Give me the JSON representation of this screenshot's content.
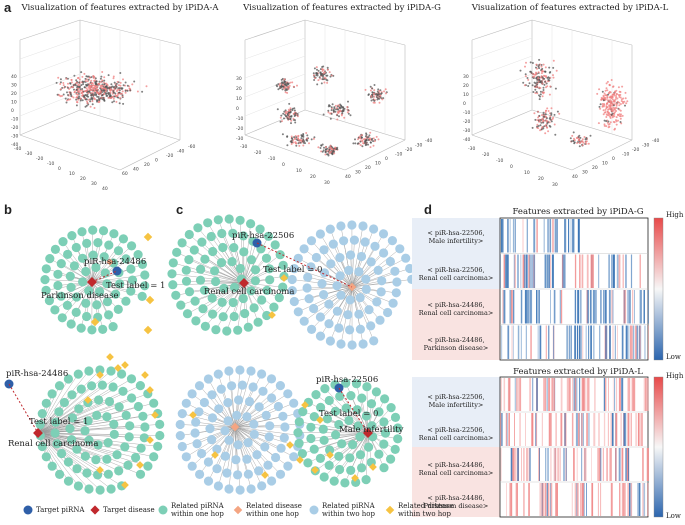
{
  "panel_a": {
    "letter": "a",
    "plots": [
      {
        "title": "Visualization of features extracted by iPiDA-A",
        "z_ticks": [
          "40",
          "30",
          "20",
          "10",
          "0",
          "-10",
          "-20",
          "-30",
          "-40"
        ],
        "x_ticks": [
          "-40",
          "-30",
          "-20",
          "-10",
          "0",
          "10",
          "20",
          "30",
          "40"
        ],
        "y_ticks": [
          "60",
          "40",
          "20",
          "0",
          "-20",
          "-40",
          "-60"
        ]
      },
      {
        "title": "Visualization of features extracted by iPiDA-G",
        "z_ticks": [
          "30",
          "20",
          "10",
          "0",
          "-10",
          "-20",
          "-30"
        ],
        "x_ticks": [
          "-30",
          "-20",
          "-10",
          "0",
          "10",
          "20",
          "30"
        ],
        "y_ticks": [
          "40",
          "30",
          "20",
          "10",
          "0",
          "-10",
          "-20",
          "-30",
          "-40"
        ]
      },
      {
        "title": "Visualization of features extracted by iPiDA-L",
        "z_ticks": [
          "30",
          "20",
          "10",
          "0",
          "-10",
          "-20",
          "-30",
          "-40"
        ],
        "x_ticks": [
          "-30",
          "-20",
          "-10",
          "0",
          "10",
          "20",
          "30"
        ],
        "y_ticks": [
          "40",
          "30",
          "20",
          "10",
          "0",
          "-10",
          "-20",
          "-30",
          "-40"
        ]
      }
    ]
  },
  "panel_b": {
    "letter": "b",
    "top": {
      "pirna": "piR-hsa-24486",
      "disease": "Parkinson disease",
      "test": "Test label = 1"
    },
    "bottom": {
      "pirna": "piR-hsa-24486",
      "disease": "Renal cell carcinoma",
      "test": "Test label = 1"
    }
  },
  "panel_c": {
    "letter": "c",
    "top": {
      "pirna": "piR-hsa-22506",
      "disease": "Renal cell carcinoma",
      "test": "Test label = 0"
    },
    "bottom": {
      "pirna": "piR-hsa-22506",
      "disease": "Male infertility",
      "test": "Test label = 0"
    }
  },
  "panel_d": {
    "letter": "d",
    "heatmaps": [
      {
        "title": "Features extracted by iPiDA-G",
        "rows": [
          {
            "line1": "< piR-hsa-22506,",
            "line2": "Male infertility>"
          },
          {
            "line1": "< piR-hsa-22506,",
            "line2": "Renal cell carcinoma>"
          },
          {
            "line1": "< piR-hsa-24486,",
            "line2": "Renal cell carcinoma>"
          },
          {
            "line1": "< piR-hsa-24486,",
            "line2": "Parkinson disease>"
          }
        ],
        "high": "High",
        "low": "Low"
      },
      {
        "title": "Features extracted by iPiDA-L",
        "rows": [
          {
            "line1": "< piR-hsa-22506,",
            "line2": "Male infertility>"
          },
          {
            "line1": "< piR-hsa-22506,",
            "line2": "Renal cell carcinoma>"
          },
          {
            "line1": "< piR-hsa-24486,",
            "line2": "Renal cell carcinoma>"
          },
          {
            "line1": "< piR-hsa-24486,",
            "line2": "Parkinson disease>"
          }
        ],
        "high": "High",
        "low": "Low"
      }
    ]
  },
  "legend": [
    {
      "name": "target-pirna",
      "text1": "Target piRNA",
      "text2": ""
    },
    {
      "name": "target-disease",
      "text1": "Target disease",
      "text2": ""
    },
    {
      "name": "related-pirna-one-hop",
      "text1": "Related piRNA",
      "text2": "within one hop"
    },
    {
      "name": "related-disease-one-hop",
      "text1": "Related disease",
      "text2": "within one hop"
    },
    {
      "name": "related-pirna-two-hop",
      "text1": "Related piRNA",
      "text2": "within two hop"
    },
    {
      "name": "related-disease-two-hop",
      "text1": "Related disease",
      "text2": "within two hop"
    }
  ],
  "colors": {
    "teal": "#7dcfb6",
    "lightblue": "#a9cde6",
    "orange_diamond": "#f6c342",
    "salmon_diamond": "#f4a582",
    "target_pirna": "#2f5fa8",
    "target_disease": "#c0282d",
    "dark_point": "#555555",
    "pink_point": "#f08080"
  }
}
